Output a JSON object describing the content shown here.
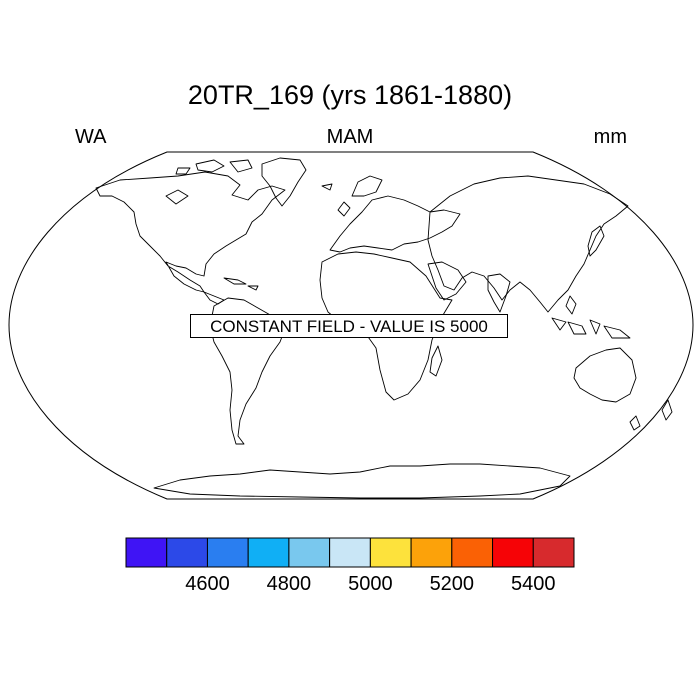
{
  "title": "20TR_169 (yrs 1861-1880)",
  "left_label": "WA",
  "center_label": "MAM",
  "right_label": "mm",
  "annotation": "CONSTANT FIELD - VALUE IS 5000",
  "colorbar": {
    "colors": [
      "#3f14f5",
      "#2c49e8",
      "#2a7ef0",
      "#10aff5",
      "#79c8ee",
      "#c9e6f6",
      "#fde23c",
      "#fca20a",
      "#fa6105",
      "#f60306",
      "#d72a2d"
    ],
    "ticks": [
      "4600",
      "4800",
      "5000",
      "5200",
      "5400"
    ]
  }
}
